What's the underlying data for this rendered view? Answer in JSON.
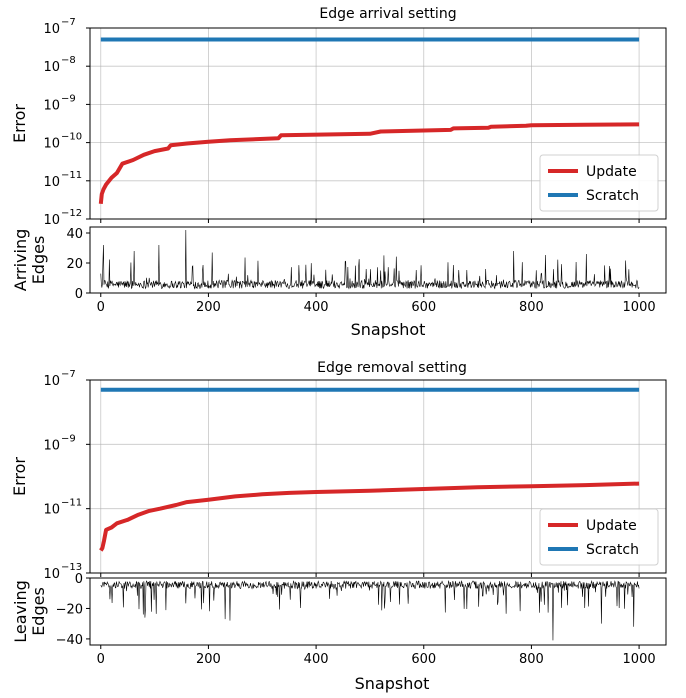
{
  "chart_data": [
    {
      "type": "line",
      "title": "Edge arrival setting",
      "panels": [
        {
          "ylabel": "Error",
          "yscale": "log",
          "ylim": [
            1e-12,
            1e-07
          ],
          "yticks": [
            {
              "v": 1e-12,
              "m": "12"
            },
            {
              "v": 1e-11,
              "m": "11"
            },
            {
              "v": 1e-10,
              "m": "10"
            },
            {
              "v": 1e-09,
              "m": "9"
            },
            {
              "v": 1e-08,
              "m": "8"
            },
            {
              "v": 1e-07,
              "m": "7"
            }
          ],
          "grid": true,
          "legend": "bottom-right",
          "series": [
            {
              "name": "Update",
              "color": "#d62728",
              "x": [
                0,
                2,
                5,
                10,
                20,
                30,
                40,
                60,
                80,
                100,
                125,
                130,
                160,
                200,
                240,
                330,
                335,
                500,
                520,
                650,
                655,
                720,
                725,
                790,
                800,
                900,
                1000
              ],
              "y": [
                2.5e-12,
                4.5e-12,
                6e-12,
                8e-12,
                1.2e-11,
                1.6e-11,
                2.8e-11,
                3.5e-11,
                4.8e-11,
                6e-11,
                7e-11,
                8.5e-11,
                9.5e-11,
                1.05e-10,
                1.15e-10,
                1.3e-10,
                1.55e-10,
                1.7e-10,
                1.95e-10,
                2.15e-10,
                2.35e-10,
                2.45e-10,
                2.6e-10,
                2.75e-10,
                2.85e-10,
                2.95e-10,
                3e-10
              ]
            },
            {
              "name": "Scratch",
              "color": "#1f77b4",
              "x": [
                0,
                1000
              ],
              "y": [
                5e-08,
                5e-08
              ]
            }
          ]
        },
        {
          "ylabel": "Arriving\nEdges",
          "ylim": [
            0,
            44
          ],
          "yticks": [
            0,
            20,
            40
          ],
          "xlabel": "Snapshot",
          "xticks": [
            0,
            200,
            400,
            600,
            800,
            1000
          ],
          "series": [
            {
              "name": "",
              "color": "#000000",
              "gen": {
                "seed": 12345,
                "sign": 1,
                "base": 3,
                "spread": 5.5,
                "spike_rate": 0.08,
                "spike_max": 18,
                "peaks": [
                  [
                    5,
                    32
                  ],
                  [
                    62,
                    28
                  ],
                  [
                    108,
                    32
                  ],
                  [
                    158,
                    42
                  ],
                  [
                    207,
                    27
                  ],
                  [
                    767,
                    28
                  ],
                  [
                    902,
                    26
                  ]
                ]
              }
            }
          ]
        }
      ],
      "xlim": [
        -20,
        1050
      ]
    },
    {
      "type": "line",
      "title": "Edge removal setting",
      "panels": [
        {
          "ylabel": "Error",
          "yscale": "log",
          "ylim": [
            1e-13,
            1e-07
          ],
          "yticks": [
            {
              "v": 1e-13,
              "m": "13"
            },
            {
              "v": 1e-11,
              "m": "11"
            },
            {
              "v": 1e-09,
              "m": "9"
            },
            {
              "v": 1e-07,
              "m": "7"
            }
          ],
          "grid": true,
          "legend": "bottom-right",
          "series": [
            {
              "name": "Update",
              "color": "#d62728",
              "x": [
                0,
                3,
                6,
                10,
                20,
                30,
                50,
                70,
                90,
                110,
                140,
                160,
                200,
                250,
                300,
                350,
                400,
                500,
                600,
                700,
                800,
                900,
                1000
              ],
              "y": [
                5e-13,
                6e-13,
                1e-12,
                2.2e-12,
                2.6e-12,
                3.5e-12,
                4.5e-12,
                6.5e-12,
                8.5e-12,
                1e-11,
                1.3e-11,
                1.6e-11,
                1.9e-11,
                2.4e-11,
                2.8e-11,
                3.1e-11,
                3.3e-11,
                3.6e-11,
                4.1e-11,
                4.6e-11,
                5e-11,
                5.4e-11,
                6e-11
              ]
            },
            {
              "name": "Scratch",
              "color": "#1f77b4",
              "x": [
                0,
                1000
              ],
              "y": [
                5e-08,
                5e-08
              ]
            }
          ]
        },
        {
          "ylabel": "Leaving\nEdges",
          "ylim": [
            -44,
            0
          ],
          "yticks": [
            0,
            -20,
            -40
          ],
          "xlabel": "Snapshot",
          "xticks": [
            0,
            200,
            400,
            600,
            800,
            1000
          ],
          "series": [
            {
              "name": "",
              "color": "#000000",
              "gen": {
                "seed": 67890,
                "sign": -1,
                "base": 2,
                "spread": 5,
                "spike_rate": 0.09,
                "spike_max": 20,
                "peaks": [
                  [
                    82,
                    26
                  ],
                  [
                    231,
                    27
                  ],
                  [
                    240,
                    28
                  ],
                  [
                    840,
                    41
                  ],
                  [
                    930,
                    30
                  ],
                  [
                    990,
                    32
                  ]
                ]
              }
            }
          ]
        }
      ],
      "xlim": [
        -20,
        1050
      ]
    }
  ]
}
